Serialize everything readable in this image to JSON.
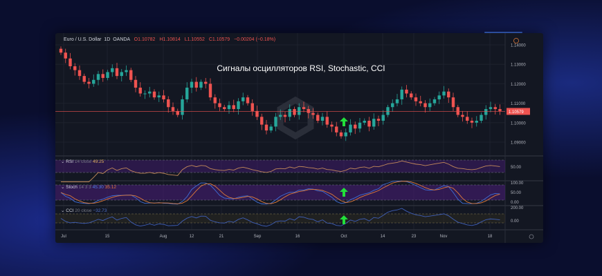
{
  "symbol": {
    "name": "Euro / U.S. Dollar",
    "interval": "1D",
    "source": "OANDA",
    "open": "O1.10782",
    "high": "H1.10814",
    "low": "L1.10552",
    "close": "C1.10579",
    "change": "−0.00204 (−0.18%)"
  },
  "overlay_title": "Сигналы осцилляторов RSI, Stochastic, CCI",
  "price_axis": {
    "ticks": [
      "1.14000",
      "1.13000",
      "1.12000",
      "1.11000",
      "1.10000",
      "1.09000"
    ],
    "current_price": "1.10579"
  },
  "indicators": {
    "rsi": {
      "name": "RSI",
      "params": "14 close",
      "value": "49.25",
      "axis": "50.00"
    },
    "stoch": {
      "name": "Stoch",
      "params": "14 3 3",
      "k": "45.30",
      "d": "35.12",
      "axis": [
        "100.00",
        "50.00",
        "0.00"
      ]
    },
    "cci": {
      "name": "CCI",
      "params": "20 close",
      "value": "−32.73",
      "axis": [
        "200.00",
        "0.00"
      ]
    }
  },
  "time_axis": [
    "Jul",
    "15",
    "Aug",
    "12",
    "21",
    "Sep",
    "16",
    "Oct",
    "14",
    "23",
    "Nov",
    "18"
  ],
  "colors": {
    "up": "#26a69a",
    "down": "#ef5350",
    "signal_arrow": "#22e03a",
    "rsi": "#c48a5a",
    "stoch_k": "#3f6fd8",
    "stoch_d": "#e07b39",
    "cci": "#3f5fb8",
    "band": "#4a1d7a"
  },
  "icons": [
    "indicator-collapse-icon",
    "alert-icon",
    "settings-icon",
    "signal-arrow-up-icon"
  ],
  "candles_close": [
    1.136,
    1.133,
    1.129,
    1.127,
    1.124,
    1.121,
    1.12,
    1.122,
    1.125,
    1.123,
    1.126,
    1.128,
    1.124,
    1.126,
    1.127,
    1.122,
    1.118,
    1.115,
    1.115,
    1.116,
    1.113,
    1.114,
    1.112,
    1.108,
    1.106,
    1.104,
    1.112,
    1.118,
    1.121,
    1.118,
    1.121,
    1.12,
    1.113,
    1.11,
    1.108,
    1.107,
    1.109,
    1.107,
    1.111,
    1.113,
    1.11,
    1.106,
    1.103,
    1.099,
    1.096,
    1.098,
    1.103,
    1.104,
    1.103,
    1.107,
    1.104,
    1.108,
    1.107,
    1.105,
    1.104,
    1.101,
    1.103,
    1.099,
    1.098,
    1.095,
    1.093,
    1.095,
    1.099,
    1.097,
    1.1,
    1.101,
    1.098,
    1.102,
    1.101,
    1.104,
    1.108,
    1.11,
    1.112,
    1.117,
    1.115,
    1.113,
    1.111,
    1.11,
    1.108,
    1.11,
    1.112,
    1.114,
    1.116,
    1.113,
    1.108,
    1.104,
    1.103,
    1.101,
    1.1,
    1.101,
    1.104,
    1.107,
    1.108,
    1.107,
    1.106
  ]
}
